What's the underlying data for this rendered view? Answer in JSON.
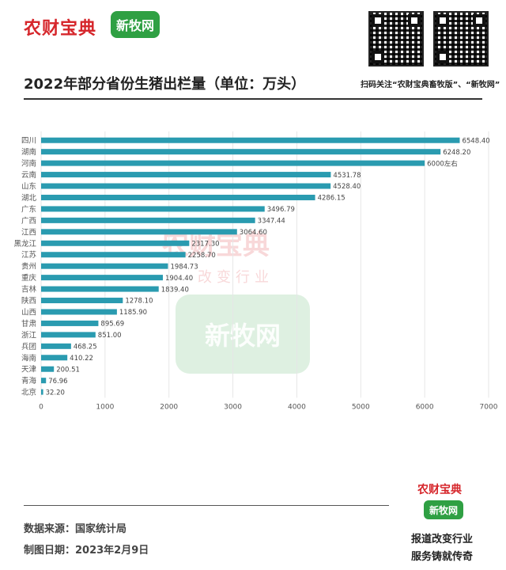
{
  "brand": {
    "logo_text": "农财宝典",
    "xinmuwang": "新牧网",
    "scan_text": "扫码关注“农财宝典畜牧版”、“新牧网”",
    "watermark_sub": "改变行业"
  },
  "footer": {
    "source": "数据来源：国家统计局",
    "date": "制图日期：2023年2月9日",
    "slogan_line1": "报道改变行业",
    "slogan_line2": "服务铸就传奇"
  },
  "colors": {
    "bar": "#2a9bb0",
    "axis_text": "#555555",
    "grid": "#e6e6e6"
  },
  "chart_data": {
    "type": "bar",
    "orientation": "horizontal",
    "title": "2022年部分省份生猪出栏量（单位：万头）",
    "xlabel": "",
    "ylabel": "",
    "xlim": [
      0,
      7000
    ],
    "xticks": [
      0,
      1000,
      2000,
      3000,
      4000,
      5000,
      6000,
      7000
    ],
    "categories": [
      "四川",
      "湖南",
      "河南",
      "云南",
      "山东",
      "湖北",
      "广东",
      "广西",
      "江西",
      "黑龙江",
      "江苏",
      "贵州",
      "重庆",
      "吉林",
      "陕西",
      "山西",
      "甘肃",
      "浙江",
      "兵团",
      "海南",
      "天津",
      "青海",
      "北京"
    ],
    "values": [
      6548.4,
      6248.2,
      6000,
      4531.78,
      4528.4,
      4286.15,
      3496.79,
      3347.44,
      3064.6,
      2317.3,
      2258.7,
      1984.73,
      1904.4,
      1839.4,
      1278.1,
      1185.9,
      895.69,
      851.0,
      468.25,
      410.22,
      200.51,
      76.96,
      32.2
    ],
    "value_labels": [
      "6548.40",
      "6248.20",
      "6000左右",
      "4531.78",
      "4528.40",
      "4286.15",
      "3496.79",
      "3347.44",
      "3064.60",
      "2317.30",
      "2258.70",
      "1984.73",
      "1904.40",
      "1839.40",
      "1278.10",
      "1185.90",
      "895.69",
      "851.00",
      "468.25",
      "410.22",
      "200.51",
      "76.96",
      "32.20"
    ]
  }
}
